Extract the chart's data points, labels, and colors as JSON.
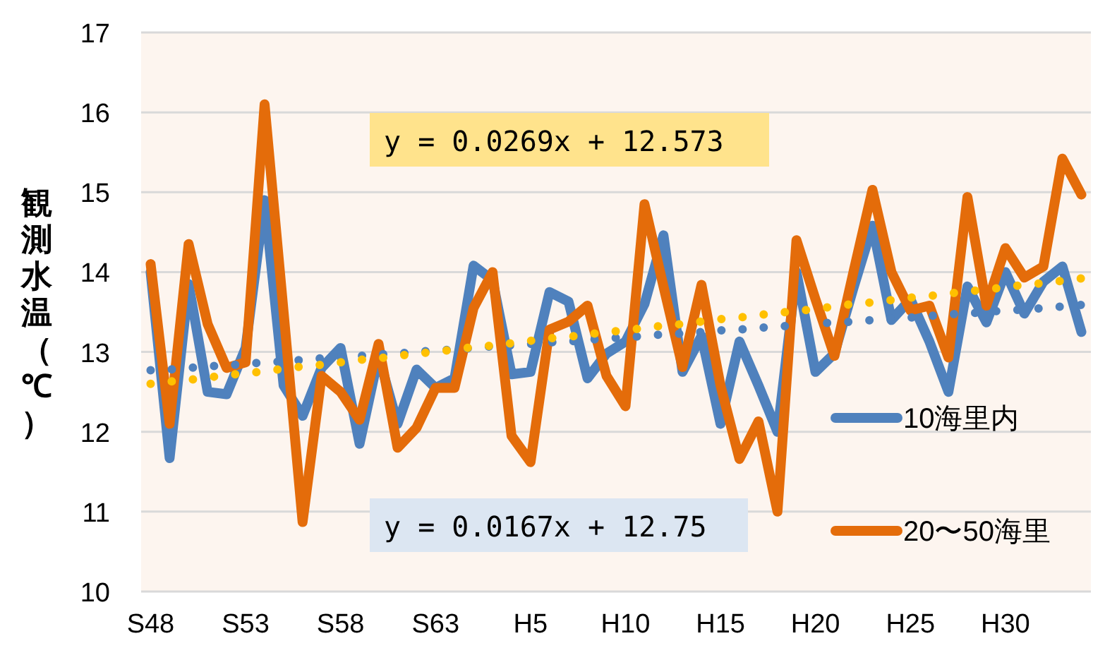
{
  "chart_data": {
    "type": "line",
    "ylabel": "観測水温（℃）",
    "categories": [
      "S48",
      null,
      null,
      null,
      null,
      "S53",
      null,
      null,
      null,
      null,
      "S58",
      null,
      null,
      null,
      null,
      "S63",
      null,
      null,
      null,
      null,
      "H5",
      null,
      null,
      null,
      null,
      "H10",
      null,
      null,
      null,
      null,
      "H15",
      null,
      null,
      null,
      null,
      "H20",
      null,
      null,
      null,
      null,
      "H25",
      null,
      null,
      null,
      null,
      "H30",
      null,
      null,
      null,
      null
    ],
    "series": [
      {
        "name": "10海里内",
        "color": "#4f81bd",
        "line_style": "solid",
        "values": [
          14.0,
          11.67,
          13.85,
          12.5,
          12.47,
          13.05,
          14.9,
          12.58,
          12.2,
          12.8,
          13.05,
          11.85,
          12.95,
          12.1,
          12.78,
          12.55,
          12.67,
          14.08,
          13.9,
          12.72,
          12.75,
          13.75,
          13.63,
          12.67,
          12.98,
          13.13,
          13.6,
          14.46,
          12.75,
          13.2,
          12.1,
          13.13,
          12.58,
          12.0,
          14.0,
          12.75,
          12.98,
          13.8,
          14.58,
          13.4,
          13.66,
          13.13,
          12.5,
          13.82,
          13.37,
          14.0,
          13.48,
          13.88,
          14.07,
          13.25
        ]
      },
      {
        "name": "20〜50海里",
        "color": "#e46c0a",
        "line_style": "solid",
        "values": [
          14.1,
          12.1,
          14.35,
          13.35,
          12.8,
          12.87,
          16.1,
          13.5,
          10.87,
          12.7,
          12.5,
          12.15,
          13.1,
          11.8,
          12.05,
          12.55,
          12.55,
          13.55,
          14.0,
          11.95,
          11.62,
          13.28,
          13.38,
          13.58,
          12.7,
          12.32,
          14.85,
          13.82,
          12.81,
          13.84,
          12.58,
          11.66,
          12.13,
          11.0,
          14.4,
          13.66,
          12.95,
          14.0,
          15.03,
          14.0,
          13.52,
          13.58,
          12.93,
          14.94,
          13.58,
          14.3,
          13.93,
          14.07,
          15.42,
          14.97
        ]
      },
      {
        "type": "line",
        "color": "#4f81bd",
        "line_style": "dotted",
        "values": [
          12.77,
          12.78,
          12.8,
          12.82,
          12.83,
          12.85,
          12.87,
          12.88,
          12.9,
          12.92,
          12.93,
          12.95,
          12.97,
          12.98,
          13.0,
          13.02,
          13.03,
          13.05,
          13.07,
          13.08,
          13.1,
          13.12,
          13.13,
          13.15,
          13.17,
          13.18,
          13.2,
          13.22,
          13.23,
          13.25,
          13.27,
          13.28,
          13.3,
          13.32,
          13.33,
          13.35,
          13.37,
          13.38,
          13.4,
          13.42,
          13.43,
          13.45,
          13.47,
          13.48,
          13.5,
          13.52,
          13.53,
          13.55,
          13.57,
          13.59
        ]
      },
      {
        "type": "line",
        "color": "#ffc000",
        "line_style": "dotted",
        "values": [
          12.6,
          12.63,
          12.65,
          12.68,
          12.71,
          12.73,
          12.76,
          12.79,
          12.82,
          12.84,
          12.87,
          12.9,
          12.92,
          12.95,
          12.98,
          13.0,
          13.03,
          13.06,
          13.08,
          13.11,
          13.14,
          13.17,
          13.19,
          13.22,
          13.25,
          13.27,
          13.3,
          13.33,
          13.35,
          13.38,
          13.41,
          13.43,
          13.46,
          13.49,
          13.51,
          13.54,
          13.57,
          13.6,
          13.62,
          13.65,
          13.68,
          13.7,
          13.73,
          13.76,
          13.78,
          13.81,
          13.84,
          13.86,
          13.89,
          13.92
        ]
      }
    ],
    "annotations": [
      "y = 0.0269x + 12.573",
      "y = 0.0167x + 12.75"
    ],
    "ylim": [
      10,
      17
    ],
    "yticks": [
      10,
      11,
      12,
      13,
      14,
      15,
      16,
      17
    ],
    "grid": "y",
    "legend": "right"
  }
}
